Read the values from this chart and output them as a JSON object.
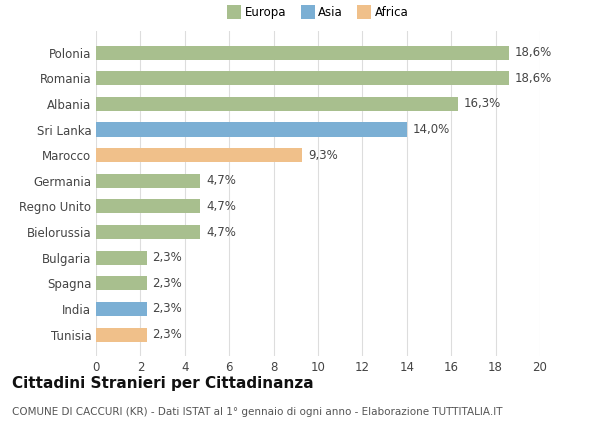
{
  "categories": [
    "Tunisia",
    "India",
    "Spagna",
    "Bulgaria",
    "Bielorussia",
    "Regno Unito",
    "Germania",
    "Marocco",
    "Sri Lanka",
    "Albania",
    "Romania",
    "Polonia"
  ],
  "values": [
    2.3,
    2.3,
    2.3,
    2.3,
    4.7,
    4.7,
    4.7,
    9.3,
    14.0,
    16.3,
    18.6,
    18.6
  ],
  "labels": [
    "2,3%",
    "2,3%",
    "2,3%",
    "2,3%",
    "4,7%",
    "4,7%",
    "4,7%",
    "9,3%",
    "14,0%",
    "16,3%",
    "18,6%",
    "18,6%"
  ],
  "colors": [
    "#f0c08a",
    "#7bafd4",
    "#a8bf8e",
    "#a8bf8e",
    "#a8bf8e",
    "#a8bf8e",
    "#a8bf8e",
    "#f0c08a",
    "#7bafd4",
    "#a8bf8e",
    "#a8bf8e",
    "#a8bf8e"
  ],
  "legend_labels": [
    "Europa",
    "Asia",
    "Africa"
  ],
  "legend_colors": [
    "#a8bf8e",
    "#7bafd4",
    "#f0c08a"
  ],
  "title": "Cittadini Stranieri per Cittadinanza",
  "subtitle": "COMUNE DI CACCURI (KR) - Dati ISTAT al 1° gennaio di ogni anno - Elaborazione TUTTITALIA.IT",
  "xlim": [
    0,
    20
  ],
  "xticks": [
    0,
    2,
    4,
    6,
    8,
    10,
    12,
    14,
    16,
    18,
    20
  ],
  "bg_color": "#ffffff",
  "grid_color": "#dddddd",
  "bar_height": 0.55,
  "label_fontsize": 8.5,
  "tick_fontsize": 8.5,
  "title_fontsize": 11,
  "subtitle_fontsize": 7.5
}
